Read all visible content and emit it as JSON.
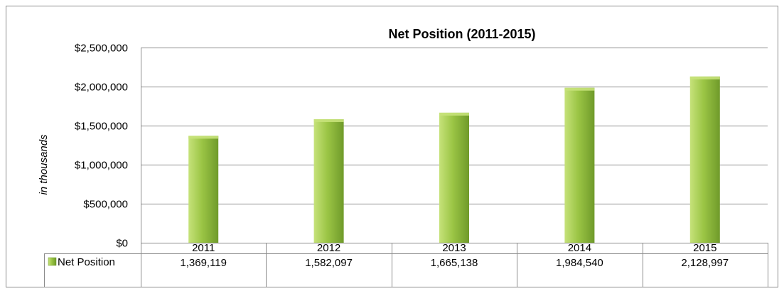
{
  "chart_data": {
    "type": "bar",
    "title": "Net Position (2011-2015)",
    "ylabel": "in thousands",
    "xlabel": "",
    "categories": [
      "2011",
      "2012",
      "2013",
      "2014",
      "2015"
    ],
    "series": [
      {
        "name": "Net Position",
        "values": [
          1369119,
          1582097,
          1665138,
          1984540,
          2128997
        ],
        "value_labels": [
          "1,369,119",
          "1,582,097",
          "1,665,138",
          "1,984,540",
          "2,128,997"
        ],
        "color": "#9bc545"
      }
    ],
    "ylim": [
      0,
      2500000
    ],
    "yticks": [
      {
        "value": 0,
        "label": "$0"
      },
      {
        "value": 500000,
        "label": "$500,000"
      },
      {
        "value": 1000000,
        "label": "$1,000,000"
      },
      {
        "value": 1500000,
        "label": "$1,500,000"
      },
      {
        "value": 2000000,
        "label": "$2,000,000"
      },
      {
        "value": 2500000,
        "label": "$2,500,000"
      }
    ],
    "grid": true,
    "legend": "data-table",
    "colors": {
      "bar_light": "#c6e27a",
      "bar_main": "#9bc545",
      "bar_dark": "#6f9a2a",
      "gridline": "#8c8c8c",
      "border": "#8c8c8c"
    }
  }
}
